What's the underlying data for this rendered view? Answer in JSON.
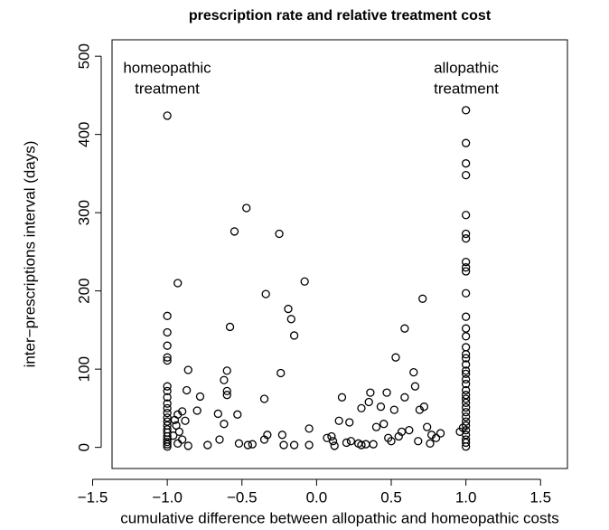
{
  "chart_data": {
    "type": "scatter",
    "title": "prescription rate and relative treatment cost",
    "x_label": "cumulative difference between allopathic and homeopathic costs",
    "y_label": "inter−prescriptions interval (days)",
    "annotations": [
      [
        "homeopathic",
        "treatment"
      ],
      [
        "allopathic",
        "treatment"
      ]
    ],
    "x": [
      -1,
      -1,
      -1,
      -1,
      -1,
      -1,
      -1,
      -1,
      -1,
      -1,
      -1,
      -1,
      -1,
      -1,
      -1,
      -1,
      -1,
      -1,
      -1,
      -1,
      -1,
      -1,
      1,
      1,
      1,
      1,
      1,
      1,
      1,
      1,
      1,
      1,
      1,
      1,
      1,
      1,
      1,
      1,
      1,
      1,
      1,
      1,
      1,
      1,
      1,
      1,
      1,
      1,
      1,
      1,
      1,
      1,
      1,
      1,
      1,
      1,
      1,
      1,
      -0.93,
      -0.86,
      -0.87,
      -0.9,
      -0.93,
      -0.95,
      -0.88,
      -0.94,
      -0.92,
      -0.96,
      -0.9,
      -0.93,
      -0.86,
      -0.78,
      -0.8,
      -0.73,
      -0.66,
      -0.65,
      -0.62,
      -0.6,
      -0.6,
      -0.6,
      -0.62,
      -0.58,
      -0.55,
      -0.53,
      -0.52,
      -0.47,
      -0.46,
      -0.43,
      -0.35,
      -0.34,
      -0.35,
      -0.33,
      -0.25,
      -0.24,
      -0.23,
      -0.22,
      -0.19,
      -0.17,
      -0.15,
      -0.15,
      -0.08,
      -0.05,
      -0.05,
      0.07,
      0.1,
      0.11,
      0.12,
      0.15,
      0.17,
      0.2,
      0.22,
      0.23,
      0.28,
      0.3,
      0.3,
      0.33,
      0.36,
      0.35,
      0.38,
      0.4,
      0.43,
      0.45,
      0.47,
      0.48,
      0.5,
      0.52,
      0.55,
      0.53,
      0.57,
      0.59,
      0.59,
      0.62,
      0.65,
      0.66,
      0.68,
      0.69,
      0.71,
      0.72,
      0.74,
      0.76,
      0.77,
      0.8,
      0.83,
      0.96,
      0.98
    ],
    "y": [
      424,
      168,
      147,
      130,
      115,
      111,
      78,
      72,
      64,
      56,
      50,
      44,
      38,
      33,
      28,
      23,
      19,
      14,
      10,
      7,
      4,
      1,
      431,
      389,
      363,
      348,
      297,
      273,
      267,
      237,
      230,
      225,
      197,
      167,
      152,
      142,
      128,
      119,
      114,
      106,
      98,
      94,
      87,
      81,
      73,
      67,
      62,
      57,
      51,
      45,
      39,
      33,
      28,
      22,
      16,
      10,
      6,
      1,
      210,
      99,
      73,
      46,
      42,
      35,
      34,
      28,
      20,
      15,
      10,
      5,
      2,
      65,
      47,
      3,
      43,
      10,
      86,
      98,
      72,
      67,
      30,
      154,
      276,
      42,
      5,
      306,
      3,
      4,
      62,
      196,
      10,
      16,
      273,
      95,
      16,
      3,
      177,
      164,
      143,
      3,
      212,
      24,
      3,
      12,
      14,
      8,
      2,
      34,
      64,
      6,
      32,
      8,
      5,
      50,
      3,
      4,
      70,
      58,
      4,
      26,
      52,
      30,
      70,
      12,
      8,
      48,
      14,
      115,
      20,
      152,
      64,
      22,
      96,
      78,
      8,
      48,
      190,
      52,
      26,
      5,
      16,
      12,
      18,
      20,
      25
    ],
    "xlim": [
      -1.37,
      1.68
    ],
    "ylim": [
      -27,
      521
    ],
    "xticks": [
      {
        "value": -1.5,
        "label": "−1.5"
      },
      {
        "value": -1,
        "label": "−1.0"
      },
      {
        "value": -0.5,
        "label": "−0.5"
      },
      {
        "value": 0,
        "label": "0.0"
      },
      {
        "value": 0.5,
        "label": "0.5"
      },
      {
        "value": 1,
        "label": "1.0"
      },
      {
        "value": 1.5,
        "label": "1.5"
      }
    ],
    "yticks": [
      0,
      100,
      200,
      300,
      400,
      500
    ],
    "color": "#000000"
  }
}
